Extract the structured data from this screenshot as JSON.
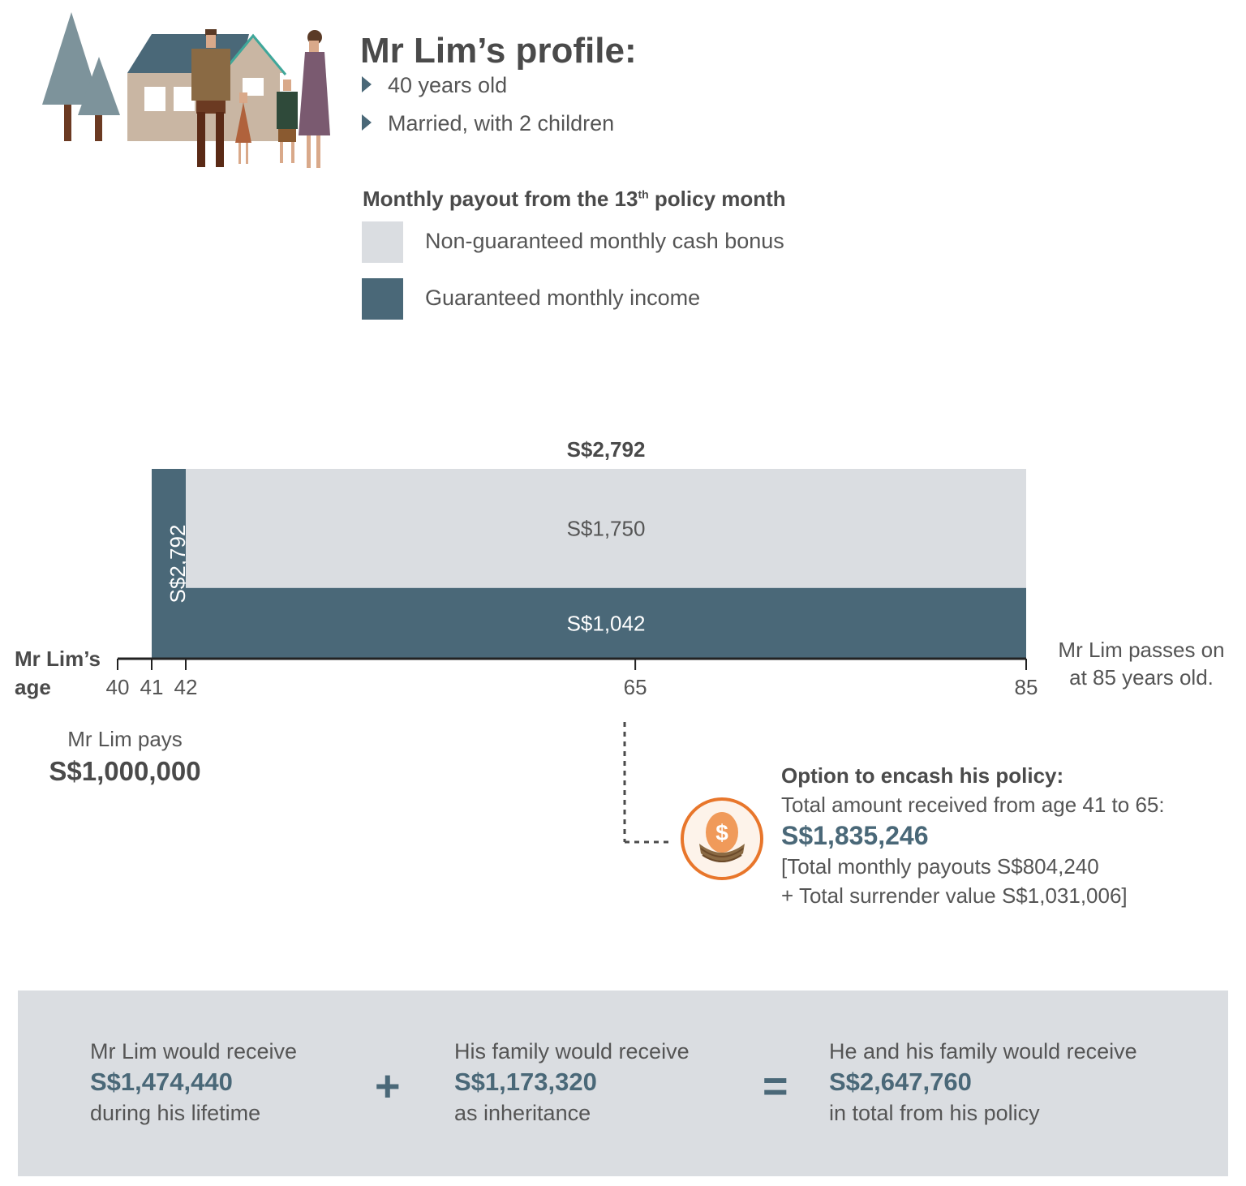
{
  "profile": {
    "title": "Mr Lim’s profile:",
    "bullets": [
      "40 years old",
      "Married, with 2 children"
    ]
  },
  "legend": {
    "title_pre": "Monthly payout from the 13",
    "title_sup": "th",
    "title_post": " policy month",
    "items": [
      {
        "label": "Non-guaranteed monthly cash bonus",
        "color": "#dadde1"
      },
      {
        "label": "Guaranteed monthly income",
        "color": "#4a6878"
      }
    ]
  },
  "chart_data": {
    "type": "bar",
    "title": "S$2,792",
    "xlabel": "Mr Lim’s age",
    "x_ticks": [
      "40",
      "41",
      "42",
      "65",
      "85"
    ],
    "segments": [
      {
        "from_age": 41,
        "to_age": 42,
        "series": "Guaranteed monthly income",
        "value": 2792,
        "label": "S$2,792"
      },
      {
        "from_age": 42,
        "to_age": 85,
        "series": "Guaranteed monthly income",
        "value": 1042,
        "label": "S$1,042"
      },
      {
        "from_age": 42,
        "to_age": 85,
        "series": "Non-guaranteed monthly cash bonus",
        "value": 1750,
        "label": "S$1,750"
      }
    ],
    "total_label": "S$2,792",
    "ylim": [
      0,
      2792
    ]
  },
  "axis": {
    "label_line1": "Mr Lim’s",
    "label_line2": "age"
  },
  "passes": {
    "line1": "Mr Lim passes on",
    "line2": "at 85 years old."
  },
  "pays": {
    "label": "Mr Lim pays",
    "value": "S$1,000,000"
  },
  "encash": {
    "title": "Option to encash his policy:",
    "line1": "Total amount received from age 41  to 65:",
    "value": "S$1,835,246",
    "line2": "[Total monthly payouts S$804,240",
    "line3": "+ Total surrender value S$1,031,006]",
    "icon": "nest-egg-dollar-icon"
  },
  "summary": {
    "blocks": [
      {
        "top": "Mr Lim would receive",
        "value": "S$1,474,440",
        "bottom": "during his lifetime"
      },
      {
        "top": "His family would receive",
        "value": "S$1,173,320",
        "bottom": "as inheritance"
      },
      {
        "top": "He and his family would receive",
        "value": "S$2,647,760",
        "bottom": "in total from his policy"
      }
    ],
    "plus": "+",
    "equals": "="
  },
  "colors": {
    "accent": "#4a6878",
    "light": "#dadde1",
    "orange": "#e8762b"
  }
}
